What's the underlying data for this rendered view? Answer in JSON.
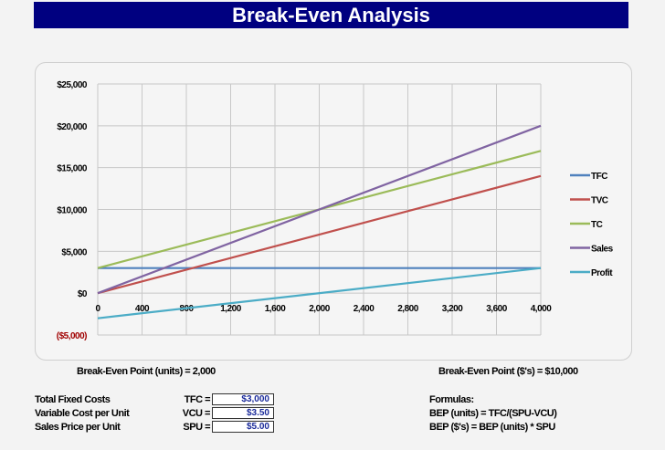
{
  "title": "Break-Even Analysis",
  "chart_data": {
    "type": "line",
    "x": [
      0,
      4000
    ],
    "series": [
      {
        "name": "TFC",
        "values": [
          3000,
          3000
        ],
        "color": "#4f81bd"
      },
      {
        "name": "TVC",
        "values": [
          0,
          14000
        ],
        "color": "#c0504d"
      },
      {
        "name": "TC",
        "values": [
          3000,
          17000
        ],
        "color": "#9bbb59"
      },
      {
        "name": "Sales",
        "values": [
          0,
          20000
        ],
        "color": "#8064a2"
      },
      {
        "name": "Profit",
        "values": [
          -3000,
          3000
        ],
        "color": "#4bacc6"
      }
    ],
    "xlim": [
      0,
      4000
    ],
    "ylim": [
      -5000,
      25000
    ],
    "xticks": [
      "0",
      "400",
      "800",
      "1,200",
      "1,600",
      "2,000",
      "2,400",
      "2,800",
      "3,200",
      "3,600",
      "4,000"
    ],
    "yticks": [
      "$25,000",
      "$20,000",
      "$15,000",
      "$10,000",
      "$5,000",
      "$0",
      "($5,000)"
    ],
    "grid": true,
    "legend": "right"
  },
  "bep_units": "Break-Even Point (units) = 2,000",
  "bep_dollars": "Break-Even Point ($'s) = $10,000",
  "inputs": [
    {
      "label": "Total Fixed Costs",
      "code": "TFC =",
      "value": "$3,000"
    },
    {
      "label": "Variable Cost per Unit",
      "code": "VCU =",
      "value": "$3.50"
    },
    {
      "label": "Sales Price per Unit",
      "code": "SPU =",
      "value": "$5.00"
    }
  ],
  "formulas": {
    "heading": "Formulas:",
    "f1": "BEP (units) = TFC/(SPU-VCU)",
    "f2": "BEP ($'s) = BEP (units) * SPU"
  }
}
